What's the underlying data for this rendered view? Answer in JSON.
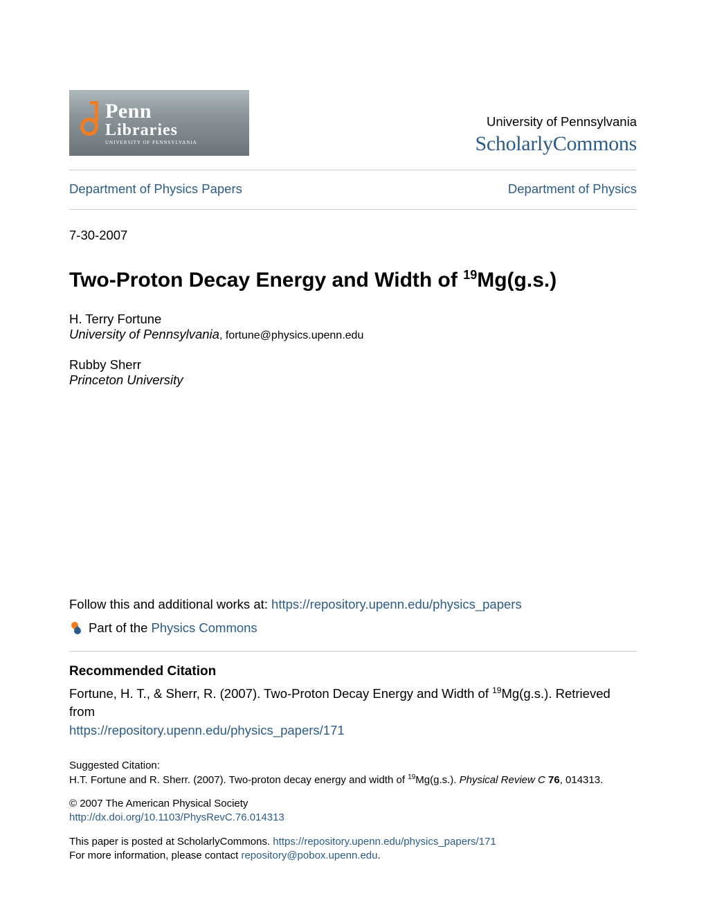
{
  "institution": {
    "name": "University of Pennsylvania",
    "commons": "ScholarlyCommons",
    "logo_primary": "Penn",
    "logo_secondary": "Libraries",
    "logo_sub": "UNIVERSITY of PENNSYLVANIA"
  },
  "nav": {
    "left": "Department of Physics Papers",
    "right": "Department of Physics"
  },
  "date": "7-30-2007",
  "title": {
    "pre": "Two-Proton Decay Energy and Width of ",
    "sup": "19",
    "post": "Mg(g.s.)"
  },
  "authors": [
    {
      "name": "H. Terry Fortune",
      "affiliation": "University of Pennsylvania",
      "email": ", fortune@physics.upenn.edu"
    },
    {
      "name": "Rubby Sherr",
      "affiliation": "Princeton University",
      "email": ""
    }
  ],
  "follow": {
    "text": "Follow this and additional works at: ",
    "url": "https://repository.upenn.edu/physics_papers"
  },
  "part_of": {
    "prefix": "Part of the ",
    "link": "Physics Commons"
  },
  "recommended": {
    "heading": "Recommended Citation",
    "text_pre": "Fortune, H. T., & Sherr, R. (2007). Two-Proton Decay Energy and Width of ",
    "sup": "19",
    "text_post": "Mg(g.s.). Retrieved from",
    "url": "https://repository.upenn.edu/physics_papers/171"
  },
  "suggested": {
    "label": "Suggested Citation:",
    "text_pre": "H.T. Fortune and R. Sherr. (2007). Two-proton decay energy and width of ",
    "sup": "19",
    "text_mid": "Mg(g.s.). ",
    "journal": "Physical Review C ",
    "vol": "76",
    "pages": ", 014313."
  },
  "copyright": {
    "line": "© 2007 The American Physical Society",
    "doi": "http://dx.doi.org/10.1103/PhysRevC.76.014313"
  },
  "footer": {
    "line1_pre": "This paper is posted at ScholarlyCommons. ",
    "line1_url": "https://repository.upenn.edu/physics_papers/171",
    "line2_pre": "For more information, please contact ",
    "line2_email": "repository@pobox.upenn.edu",
    "line2_post": "."
  },
  "colors": {
    "link": "#2b5b88",
    "text": "#000000",
    "rule": "#cccccc",
    "logo_bg": "#8a9499",
    "oa_orange": "#f47c20",
    "background": "#ffffff"
  }
}
